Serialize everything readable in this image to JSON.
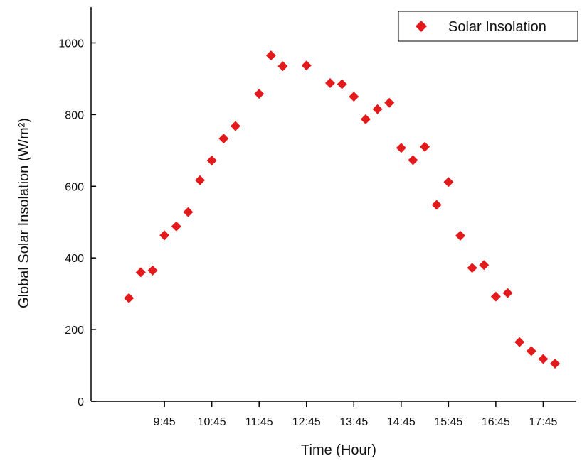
{
  "chart_data": {
    "type": "scatter",
    "x_label": "Time (Hour)",
    "y_label": "Global Solar Insolation (W/m²)",
    "xlim": [
      8.2,
      18.45
    ],
    "ylim": [
      0,
      1100
    ],
    "xticks": [
      {
        "value": 9.75,
        "label": "9:45"
      },
      {
        "value": 10.75,
        "label": "10:45"
      },
      {
        "value": 11.75,
        "label": "11:45"
      },
      {
        "value": 12.75,
        "label": "12:45"
      },
      {
        "value": 13.75,
        "label": "13:45"
      },
      {
        "value": 14.75,
        "label": "14:45"
      },
      {
        "value": 15.75,
        "label": "15:45"
      },
      {
        "value": 16.75,
        "label": "16:45"
      },
      {
        "value": 17.75,
        "label": "17:45"
      }
    ],
    "yticks": [
      0,
      200,
      400,
      600,
      800,
      1000
    ],
    "legend": "top-right",
    "series": [
      {
        "name": "Solar Insolation",
        "color": "#e31a1c",
        "x": [
          9.0,
          9.25,
          9.5,
          9.75,
          10.0,
          10.25,
          10.5,
          10.75,
          11.0,
          11.25,
          11.75,
          12.0,
          12.25,
          12.75,
          13.25,
          13.5,
          13.75,
          14.0,
          14.25,
          14.5,
          14.75,
          15.0,
          15.25,
          15.5,
          15.75,
          16.0,
          16.25,
          16.5,
          16.75,
          17.0,
          17.25,
          17.5,
          17.75,
          18.0
        ],
        "values": [
          288,
          360,
          365,
          463,
          488,
          528,
          617,
          672,
          733,
          768,
          858,
          965,
          935,
          937,
          888,
          885,
          850,
          787,
          815,
          833,
          707,
          673,
          710,
          548,
          612,
          462,
          372,
          380,
          292,
          302,
          165,
          140,
          118,
          105
        ]
      }
    ]
  }
}
